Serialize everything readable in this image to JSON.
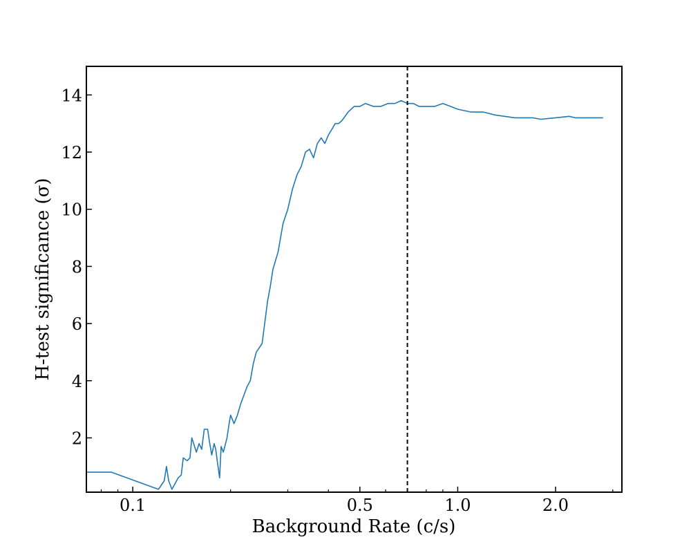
{
  "chart_data": {
    "type": "line",
    "xlabel": "Background Rate (c/s)",
    "ylabel": "H-test significance (σ)",
    "x_scale": "log",
    "xlim": [
      0.072,
      3.2
    ],
    "ylim": [
      0.1,
      15.0
    ],
    "grid": false,
    "legend": "none",
    "x_ticks": [
      {
        "value": 0.1,
        "label": "0.1"
      },
      {
        "value": 0.5,
        "label": "0.5"
      },
      {
        "value": 1.0,
        "label": "1.0"
      },
      {
        "value": 2.0,
        "label": "2.0"
      }
    ],
    "y_ticks": [
      {
        "value": 2,
        "label": "2"
      },
      {
        "value": 4,
        "label": "4"
      },
      {
        "value": 6,
        "label": "6"
      },
      {
        "value": 8,
        "label": "8"
      },
      {
        "value": 10,
        "label": "10"
      },
      {
        "value": 12,
        "label": "12"
      },
      {
        "value": 14,
        "label": "14"
      }
    ],
    "vline": {
      "x": 0.7,
      "style": "dashed",
      "color": "#000000"
    },
    "series": [
      {
        "color": "#1f77b4",
        "x": [
          0.072,
          0.086,
          0.12,
          0.125,
          0.127,
          0.129,
          0.132,
          0.138,
          0.141,
          0.143,
          0.147,
          0.15,
          0.152,
          0.155,
          0.157,
          0.16,
          0.163,
          0.166,
          0.17,
          0.172,
          0.175,
          0.178,
          0.18,
          0.182,
          0.185,
          0.187,
          0.19,
          0.193,
          0.195,
          0.198,
          0.2,
          0.205,
          0.21,
          0.215,
          0.22,
          0.225,
          0.23,
          0.235,
          0.24,
          0.25,
          0.26,
          0.265,
          0.27,
          0.28,
          0.29,
          0.3,
          0.31,
          0.32,
          0.33,
          0.34,
          0.35,
          0.36,
          0.37,
          0.38,
          0.39,
          0.4,
          0.41,
          0.42,
          0.43,
          0.44,
          0.46,
          0.48,
          0.5,
          0.52,
          0.55,
          0.58,
          0.61,
          0.64,
          0.67,
          0.7,
          0.73,
          0.76,
          0.8,
          0.85,
          0.9,
          0.95,
          1.0,
          1.1,
          1.2,
          1.3,
          1.5,
          1.7,
          1.8,
          2.0,
          2.2,
          2.3,
          2.5,
          2.8
        ],
        "y": [
          0.8,
          0.8,
          0.2,
          0.5,
          1.0,
          0.5,
          0.2,
          0.6,
          0.7,
          1.3,
          1.2,
          1.3,
          2.0,
          1.7,
          1.5,
          1.8,
          1.6,
          2.3,
          2.3,
          1.9,
          1.4,
          1.8,
          1.6,
          1.2,
          0.6,
          1.7,
          1.5,
          1.8,
          2.0,
          2.5,
          2.8,
          2.5,
          2.8,
          3.2,
          3.5,
          3.8,
          4.0,
          4.6,
          5.0,
          5.3,
          6.8,
          7.3,
          7.9,
          8.5,
          9.5,
          10.0,
          10.7,
          11.2,
          11.5,
          12.0,
          12.1,
          11.8,
          12.3,
          12.5,
          12.3,
          12.6,
          12.8,
          13.0,
          13.0,
          13.1,
          13.4,
          13.6,
          13.6,
          13.7,
          13.6,
          13.6,
          13.7,
          13.7,
          13.8,
          13.7,
          13.7,
          13.6,
          13.6,
          13.6,
          13.7,
          13.6,
          13.5,
          13.4,
          13.4,
          13.3,
          13.2,
          13.2,
          13.15,
          13.2,
          13.25,
          13.2,
          13.2,
          13.2
        ]
      }
    ]
  }
}
